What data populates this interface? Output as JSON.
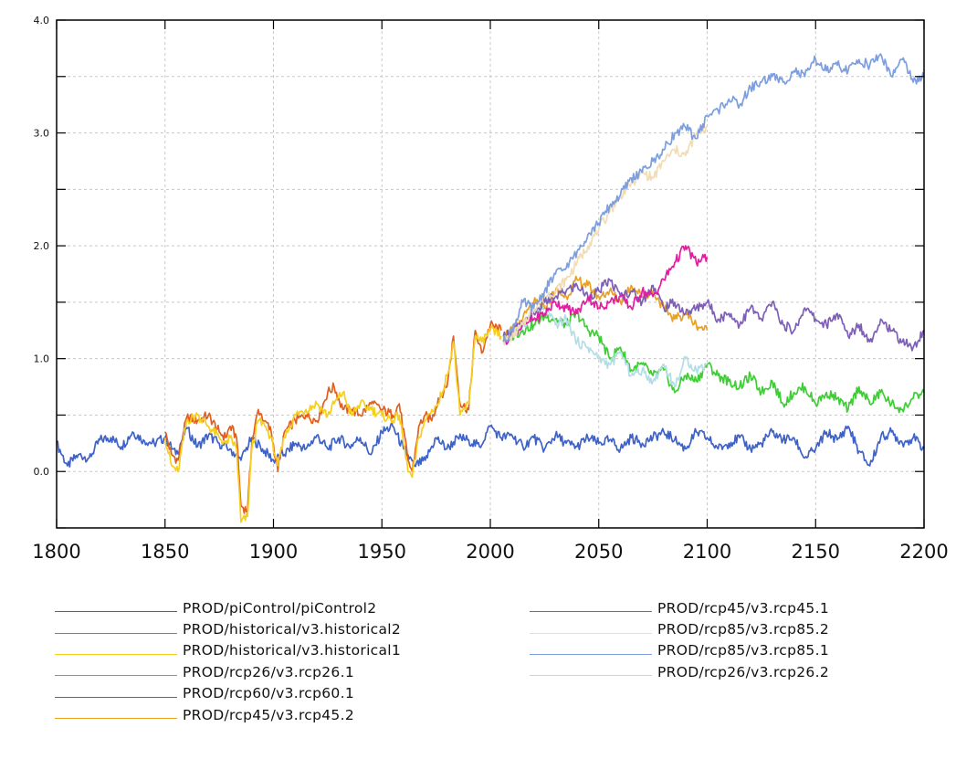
{
  "chart_data": {
    "type": "line",
    "title": "",
    "xlabel": "",
    "ylabel": "",
    "xlim": [
      1800,
      2200
    ],
    "ylim": [
      -0.5,
      4.0
    ],
    "grid": true,
    "x_ticks": [
      "1800",
      "1850",
      "1900",
      "1950",
      "2000",
      "2050",
      "2100",
      "2150",
      "2200"
    ],
    "y_ticks": [
      "0.0",
      "1.0",
      "2.0",
      "3.0",
      "4.0"
    ],
    "legend_position": "bottom",
    "series": [
      {
        "name": "PROD/piControl/piControl2",
        "color": "#3f62c8",
        "x": [
          1800,
          1805,
          1810,
          1815,
          1820,
          1825,
          1830,
          1835,
          1840,
          1845,
          1850,
          1855,
          1860,
          1865,
          1870,
          1875,
          1880,
          1885,
          1890,
          1895,
          1900,
          1905,
          1910,
          1915,
          1920,
          1925,
          1930,
          1935,
          1940,
          1945,
          1950,
          1955,
          1960,
          1965,
          1970,
          1975,
          1980,
          1985,
          1990,
          1995,
          2000,
          2005,
          2010,
          2015,
          2020,
          2025,
          2030,
          2035,
          2040,
          2045,
          2050,
          2055,
          2060,
          2065,
          2070,
          2075,
          2080,
          2085,
          2090,
          2095,
          2100,
          2105,
          2110,
          2115,
          2120,
          2125,
          2130,
          2135,
          2140,
          2145,
          2150,
          2155,
          2160,
          2165,
          2170,
          2175,
          2180,
          2185,
          2190,
          2195,
          2200
        ],
        "y": [
          0.25,
          0.05,
          0.15,
          0.12,
          0.28,
          0.3,
          0.22,
          0.35,
          0.28,
          0.25,
          0.3,
          0.15,
          0.38,
          0.22,
          0.32,
          0.25,
          0.2,
          0.1,
          0.3,
          0.2,
          0.1,
          0.15,
          0.25,
          0.2,
          0.32,
          0.2,
          0.3,
          0.22,
          0.3,
          0.15,
          0.35,
          0.4,
          0.2,
          0.05,
          0.1,
          0.3,
          0.2,
          0.3,
          0.28,
          0.22,
          0.4,
          0.3,
          0.32,
          0.22,
          0.3,
          0.2,
          0.32,
          0.25,
          0.22,
          0.3,
          0.25,
          0.28,
          0.2,
          0.3,
          0.25,
          0.3,
          0.35,
          0.28,
          0.2,
          0.35,
          0.3,
          0.2,
          0.25,
          0.3,
          0.2,
          0.25,
          0.35,
          0.28,
          0.3,
          0.12,
          0.2,
          0.35,
          0.28,
          0.4,
          0.18,
          0.05,
          0.3,
          0.35,
          0.25,
          0.3,
          0.2
        ]
      },
      {
        "name": "PROD/historical/v3.historical2",
        "color": "#e06020",
        "x": [
          1850,
          1853,
          1856,
          1860,
          1865,
          1870,
          1875,
          1878,
          1880,
          1883,
          1885,
          1888,
          1890,
          1893,
          1896,
          1899,
          1902,
          1905,
          1910,
          1915,
          1920,
          1925,
          1928,
          1932,
          1936,
          1940,
          1945,
          1950,
          1955,
          1958,
          1962,
          1964,
          1967,
          1970,
          1973,
          1976,
          1980,
          1983,
          1986,
          1990,
          1993,
          1996,
          2000,
          2005
        ],
        "y": [
          0.35,
          0.15,
          0.1,
          0.48,
          0.45,
          0.5,
          0.35,
          0.3,
          0.4,
          0.3,
          -0.3,
          -0.35,
          0.25,
          0.55,
          0.45,
          0.35,
          0.0,
          0.35,
          0.45,
          0.5,
          0.45,
          0.7,
          0.75,
          0.55,
          0.55,
          0.5,
          0.6,
          0.55,
          0.5,
          0.6,
          0.1,
          0.0,
          0.4,
          0.5,
          0.45,
          0.65,
          0.75,
          1.2,
          0.6,
          0.55,
          1.25,
          1.05,
          1.3,
          1.25
        ]
      },
      {
        "name": "PROD/historical/v3.historical1",
        "color": "#f6cf1c",
        "x": [
          1850,
          1853,
          1856,
          1860,
          1865,
          1870,
          1875,
          1878,
          1880,
          1883,
          1885,
          1888,
          1890,
          1893,
          1896,
          1899,
          1902,
          1905,
          1910,
          1915,
          1920,
          1925,
          1928,
          1932,
          1936,
          1940,
          1945,
          1950,
          1955,
          1958,
          1962,
          1964,
          1967,
          1970,
          1973,
          1976,
          1980,
          1983,
          1986,
          1990,
          1993,
          1996,
          2000,
          2005
        ],
        "y": [
          0.3,
          0.05,
          0.0,
          0.45,
          0.5,
          0.4,
          0.3,
          0.25,
          0.3,
          0.2,
          -0.45,
          -0.4,
          0.2,
          0.45,
          0.4,
          0.3,
          0.05,
          0.3,
          0.5,
          0.55,
          0.6,
          0.5,
          0.6,
          0.7,
          0.5,
          0.6,
          0.55,
          0.5,
          0.45,
          0.5,
          0.0,
          -0.05,
          0.3,
          0.45,
          0.55,
          0.6,
          0.85,
          1.15,
          0.5,
          0.6,
          1.2,
          1.15,
          1.25,
          1.2
        ]
      },
      {
        "name": "PROD/rcp26/v3.rcp26.1",
        "color": "#3fcd36",
        "x": [
          2006,
          2010,
          2015,
          2020,
          2025,
          2030,
          2035,
          2040,
          2045,
          2050,
          2055,
          2060,
          2065,
          2070,
          2075,
          2080,
          2085,
          2090,
          2095,
          2100,
          2105,
          2110,
          2115,
          2120,
          2125,
          2130,
          2135,
          2140,
          2145,
          2150,
          2155,
          2160,
          2165,
          2170,
          2175,
          2180,
          2185,
          2190,
          2195,
          2200
        ],
        "y": [
          1.15,
          1.2,
          1.25,
          1.3,
          1.38,
          1.35,
          1.3,
          1.4,
          1.25,
          1.2,
          1.0,
          1.1,
          0.9,
          0.95,
          0.85,
          0.9,
          0.7,
          0.85,
          0.8,
          0.95,
          0.85,
          0.8,
          0.75,
          0.85,
          0.7,
          0.8,
          0.6,
          0.7,
          0.75,
          0.6,
          0.7,
          0.65,
          0.55,
          0.75,
          0.6,
          0.7,
          0.6,
          0.55,
          0.65,
          0.7
        ]
      },
      {
        "name": "PROD/rcp60/v3.rcp60.1",
        "color": "#e01ea0",
        "x": [
          2006,
          2010,
          2015,
          2020,
          2025,
          2030,
          2035,
          2040,
          2045,
          2050,
          2055,
          2060,
          2065,
          2070,
          2075,
          2080,
          2085,
          2090,
          2095,
          2100
        ],
        "y": [
          1.15,
          1.2,
          1.3,
          1.35,
          1.4,
          1.5,
          1.45,
          1.4,
          1.55,
          1.45,
          1.5,
          1.55,
          1.45,
          1.6,
          1.55,
          1.7,
          1.85,
          2.0,
          1.85,
          1.9
        ]
      },
      {
        "name": "PROD/rcp45/v3.rcp45.2",
        "color": "#e9a023",
        "x": [
          2006,
          2010,
          2015,
          2020,
          2025,
          2030,
          2035,
          2040,
          2045,
          2050,
          2055,
          2060,
          2065,
          2070,
          2075,
          2080,
          2085,
          2090,
          2095,
          2100
        ],
        "y": [
          1.2,
          1.25,
          1.35,
          1.5,
          1.45,
          1.6,
          1.55,
          1.7,
          1.65,
          1.55,
          1.6,
          1.5,
          1.65,
          1.55,
          1.6,
          1.45,
          1.35,
          1.4,
          1.3,
          1.25
        ]
      },
      {
        "name": "PROD/rcp45/v3.rcp45.1",
        "color": "#7e5fb8",
        "x": [
          2006,
          2010,
          2015,
          2020,
          2025,
          2030,
          2035,
          2040,
          2045,
          2050,
          2055,
          2060,
          2065,
          2070,
          2075,
          2080,
          2085,
          2090,
          2095,
          2100,
          2105,
          2110,
          2115,
          2120,
          2125,
          2130,
          2135,
          2140,
          2145,
          2150,
          2155,
          2160,
          2165,
          2170,
          2175,
          2180,
          2185,
          2190,
          2195,
          2200
        ],
        "y": [
          1.2,
          1.25,
          1.3,
          1.4,
          1.5,
          1.55,
          1.6,
          1.65,
          1.55,
          1.6,
          1.7,
          1.55,
          1.6,
          1.5,
          1.65,
          1.45,
          1.5,
          1.4,
          1.45,
          1.5,
          1.35,
          1.4,
          1.3,
          1.45,
          1.35,
          1.5,
          1.3,
          1.25,
          1.45,
          1.35,
          1.3,
          1.4,
          1.2,
          1.3,
          1.15,
          1.35,
          1.25,
          1.15,
          1.1,
          1.25
        ]
      },
      {
        "name": "PROD/rcp85/v3.rcp85.2",
        "color": "#f0ddb6",
        "x": [
          2006,
          2010,
          2015,
          2020,
          2025,
          2030,
          2035,
          2040,
          2045,
          2050,
          2055,
          2060,
          2065,
          2070,
          2075,
          2080,
          2085,
          2090,
          2095,
          2100
        ],
        "y": [
          1.15,
          1.2,
          1.3,
          1.45,
          1.55,
          1.6,
          1.7,
          1.85,
          2.0,
          2.15,
          2.3,
          2.45,
          2.55,
          2.65,
          2.6,
          2.75,
          2.85,
          2.8,
          3.0,
          3.05
        ]
      },
      {
        "name": "PROD/rcp85/v3.rcp85.1",
        "color": "#7d9edf",
        "x": [
          2006,
          2010,
          2015,
          2020,
          2025,
          2030,
          2035,
          2040,
          2045,
          2050,
          2055,
          2060,
          2065,
          2070,
          2075,
          2080,
          2085,
          2090,
          2095,
          2100,
          2105,
          2110,
          2115,
          2120,
          2125,
          2130,
          2135,
          2140,
          2145,
          2150,
          2155,
          2160,
          2165,
          2170,
          2175,
          2180,
          2185,
          2190,
          2195,
          2200
        ],
        "y": [
          1.15,
          1.25,
          1.5,
          1.45,
          1.6,
          1.75,
          1.8,
          1.95,
          2.1,
          2.2,
          2.35,
          2.45,
          2.6,
          2.65,
          2.75,
          2.85,
          3.0,
          3.05,
          2.95,
          3.15,
          3.2,
          3.3,
          3.25,
          3.4,
          3.45,
          3.5,
          3.45,
          3.55,
          3.5,
          3.65,
          3.55,
          3.6,
          3.55,
          3.65,
          3.6,
          3.7,
          3.5,
          3.65,
          3.45,
          3.5
        ]
      },
      {
        "name": "PROD/rcp26/v3.rcp26.2",
        "color": "#b3dee6",
        "x": [
          2006,
          2010,
          2015,
          2020,
          2025,
          2030,
          2035,
          2040,
          2045,
          2050,
          2055,
          2060,
          2065,
          2070,
          2075,
          2080,
          2085,
          2090,
          2095,
          2100
        ],
        "y": [
          1.15,
          1.2,
          1.3,
          1.4,
          1.45,
          1.3,
          1.35,
          1.15,
          1.1,
          1.0,
          0.95,
          1.05,
          0.85,
          0.9,
          0.8,
          0.95,
          0.75,
          1.0,
          0.9,
          0.95
        ]
      }
    ]
  }
}
